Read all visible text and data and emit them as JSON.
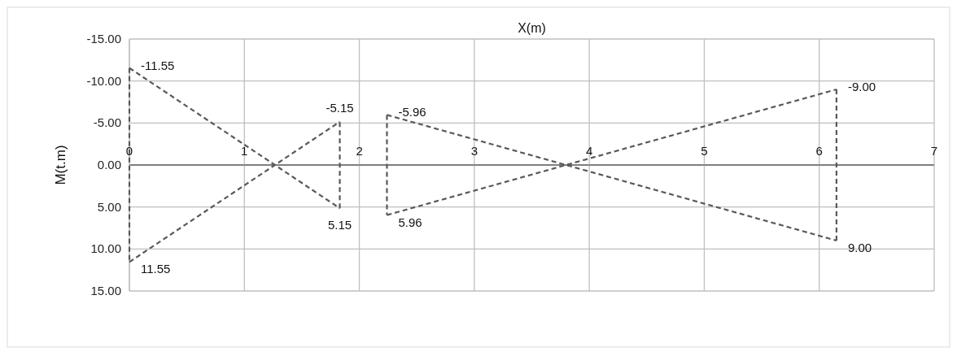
{
  "chart_data": {
    "type": "line",
    "xlabel": "X(m)",
    "ylabel": "M(t.m)",
    "xlim": [
      0,
      7
    ],
    "xticks": [
      0,
      1,
      2,
      3,
      4,
      5,
      6,
      7
    ],
    "ylim": [
      15,
      -15
    ],
    "yticks": [
      {
        "value": -15,
        "label": "-15.00"
      },
      {
        "value": -10,
        "label": "-10.00"
      },
      {
        "value": -5,
        "label": "-5.00"
      },
      {
        "value": 0,
        "label": "0.00"
      },
      {
        "value": 5,
        "label": "5.00"
      },
      {
        "value": 10,
        "label": "10.00"
      },
      {
        "value": 15,
        "label": "15.00"
      }
    ],
    "grid": true,
    "marker": "none",
    "line_style": "dashed",
    "series": [
      {
        "color": "#595959",
        "x": [
          0,
          1.83
        ],
        "values": [
          -11.55,
          5.15
        ],
        "value_labels": [
          "-11.55",
          "5.15"
        ]
      },
      {
        "color": "#595959",
        "x": [
          0,
          1.83
        ],
        "values": [
          11.55,
          -5.15
        ],
        "value_labels": [
          "11.55",
          "-5.15"
        ]
      },
      {
        "color": "#595959",
        "x": [
          2.24,
          6.15
        ],
        "values": [
          -5.96,
          9.0
        ],
        "value_labels": [
          "-5.96",
          "9.00"
        ]
      },
      {
        "color": "#595959",
        "x": [
          2.24,
          6.15
        ],
        "values": [
          5.96,
          -9.0
        ],
        "value_labels": [
          "5.96",
          "-9.00"
        ]
      }
    ]
  }
}
